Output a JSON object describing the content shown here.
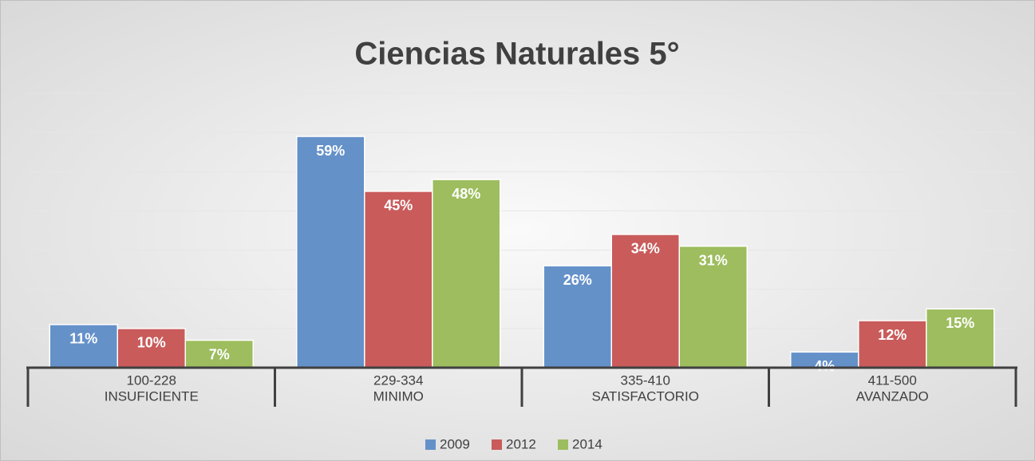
{
  "chart_data": {
    "type": "bar",
    "title": "Ciencias Naturales 5°",
    "categories": [
      [
        "100-228",
        "INSUFICIENTE"
      ],
      [
        "229-334",
        "MINIMO"
      ],
      [
        "335-410",
        "SATISFACTORIO"
      ],
      [
        "411-500",
        "AVANZADO"
      ]
    ],
    "series": [
      {
        "name": "2009",
        "color": "#6591c9",
        "values": [
          11,
          59,
          26,
          4
        ],
        "value_labels": [
          "11%",
          "59%",
          "26%",
          "4%"
        ]
      },
      {
        "name": "2012",
        "color": "#c95b5b",
        "values": [
          10,
          45,
          34,
          12
        ],
        "value_labels": [
          "10%",
          "45%",
          "34%",
          "12%"
        ]
      },
      {
        "name": "2014",
        "color": "#9dbd5e",
        "values": [
          7,
          48,
          31,
          15
        ],
        "value_labels": [
          "7%",
          "48%",
          "31%",
          "15%"
        ]
      }
    ],
    "ylim": [
      0,
      70
    ],
    "yticks": [
      0,
      10,
      20,
      30,
      40,
      50,
      60,
      70
    ],
    "grid": true,
    "legend": "bottom"
  }
}
